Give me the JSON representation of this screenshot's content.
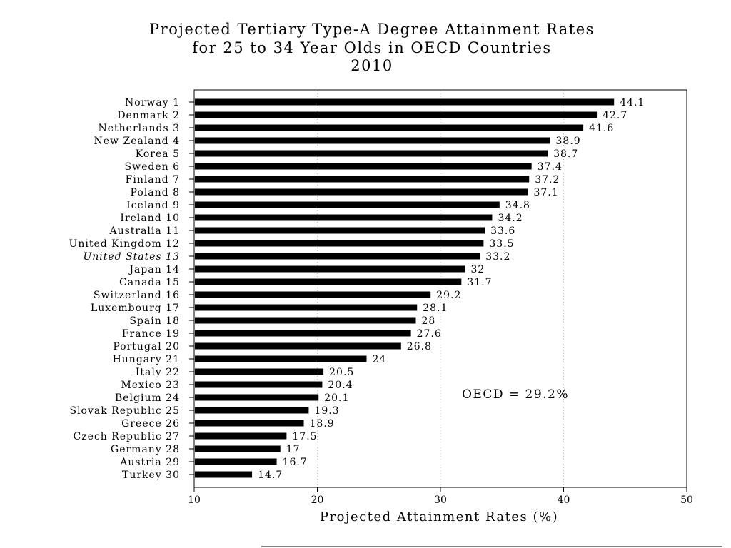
{
  "chart_data": {
    "type": "bar",
    "orientation": "horizontal",
    "title": [
      "Projected Tertiary Type-A Degree Attainment Rates",
      "for 25 to 34 Year Olds in OECD Countries",
      "2010"
    ],
    "xlabel": "Projected Attainment Rates (%)",
    "ylabel": "",
    "xlim": [
      10,
      50
    ],
    "xticks": [
      "10",
      "20",
      "30",
      "40",
      "50"
    ],
    "grid": "vertical-dotted",
    "annotation": "OECD = 29.2%",
    "categories": [
      "Norway 1",
      "Denmark 2",
      "Netherlands 3",
      "New Zealand 4",
      "Korea 5",
      "Sweden 6",
      "Finland 7",
      "Poland 8",
      "Iceland 9",
      "Ireland 10",
      "Australia 11",
      "United Kingdom 12",
      "United States 13",
      "Japan 14",
      "Canada 15",
      "Switzerland 16",
      "Luxembourg 17",
      "Spain 18",
      "France 19",
      "Portugal 20",
      "Hungary 21",
      "Italy 22",
      "Mexico 23",
      "Belgium 24",
      "Slovak Republic 25",
      "Greece 26",
      "Czech Republic 27",
      "Germany 28",
      "Austria 29",
      "Turkey 30"
    ],
    "values": [
      44.1,
      42.7,
      41.6,
      38.9,
      38.7,
      37.4,
      37.2,
      37.1,
      34.8,
      34.2,
      33.6,
      33.5,
      33.2,
      32,
      31.7,
      29.2,
      28.1,
      28,
      27.6,
      26.8,
      24,
      20.5,
      20.4,
      20.1,
      19.3,
      18.9,
      17.5,
      17,
      16.7,
      14.7
    ],
    "value_labels": [
      "44.1",
      "42.7",
      "41.6",
      "38.9",
      "38.7",
      "37.4",
      "37.2",
      "37.1",
      "34.8",
      "34.2",
      "33.6",
      "33.5",
      "33.2",
      "32",
      "31.7",
      "29.2",
      "28.1",
      "28",
      "27.6",
      "26.8",
      "24",
      "20.5",
      "20.4",
      "20.1",
      "19.3",
      "18.9",
      "17.5",
      "17",
      "16.7",
      "14.7"
    ],
    "highlighted_category": "United States 13",
    "bar_color": "#000000"
  }
}
